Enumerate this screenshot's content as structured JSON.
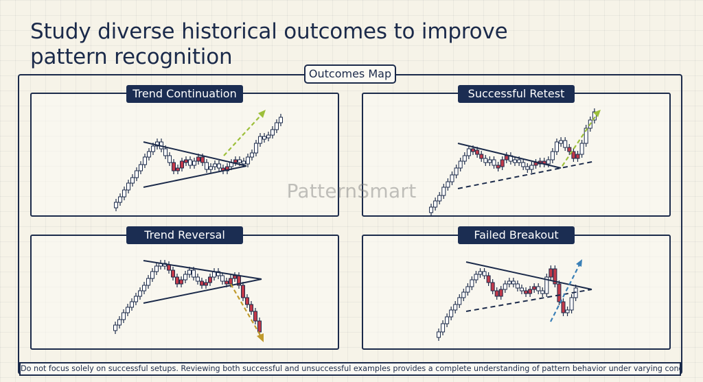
{
  "headline": "Study diverse historical outcomes to improve pattern recognition",
  "map_title": "Outcomes Map",
  "watermark": "PatternSmart",
  "footer_note": "Do not focus solely on successful setups. Reviewing both successful and unsuccessful examples provides a complete understanding of pattern behavior under varying conditions.",
  "panels": [
    {
      "title": "Trend Continuation"
    },
    {
      "title": "Successful Retest"
    },
    {
      "title": "Trend Reversal"
    },
    {
      "title": "Failed Breakout"
    }
  ],
  "colors": {
    "navy": "#1b2d52",
    "bull_candle": "#ffffff",
    "bear_candle": "#c23a4a",
    "breakout_arrow": "#9dbf3a",
    "reversal_arrow": "#c09a2c",
    "failed_arrow": "#3a7fb6"
  }
}
